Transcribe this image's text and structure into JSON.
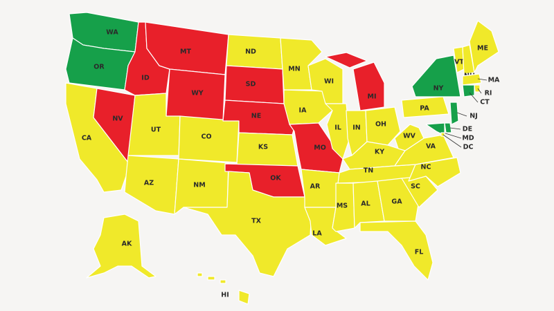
{
  "states": [
    {
      "label": "WA",
      "color": "#16a04a"
    },
    {
      "label": "OR",
      "color": "#16a04a"
    },
    {
      "label": "CA",
      "color": "#f0e92a"
    },
    {
      "label": "NV",
      "color": "#e8202a"
    },
    {
      "label": "ID",
      "color": "#e8202a"
    },
    {
      "label": "MT",
      "color": "#e8202a"
    },
    {
      "label": "WY",
      "color": "#e8202a"
    },
    {
      "label": "UT",
      "color": "#f0e92a"
    },
    {
      "label": "CO",
      "color": "#f0e92a"
    },
    {
      "label": "AZ",
      "color": "#f0e92a"
    },
    {
      "label": "NM",
      "color": "#f0e92a"
    },
    {
      "label": "ND",
      "color": "#f0e92a"
    },
    {
      "label": "SD",
      "color": "#e8202a"
    },
    {
      "label": "NE",
      "color": "#e8202a"
    },
    {
      "label": "KS",
      "color": "#f0e92a"
    },
    {
      "label": "OK",
      "color": "#e8202a"
    },
    {
      "label": "TX",
      "color": "#f0e92a"
    },
    {
      "label": "MN",
      "color": "#f0e92a"
    },
    {
      "label": "IA",
      "color": "#f0e92a"
    },
    {
      "label": "MO",
      "color": "#e8202a"
    },
    {
      "label": "AR",
      "color": "#f0e92a"
    },
    {
      "label": "LA",
      "color": "#f0e92a"
    },
    {
      "label": "WI",
      "color": "#f0e92a"
    },
    {
      "label": "IL",
      "color": "#f0e92a"
    },
    {
      "label": "MI",
      "color": "#e8202a"
    },
    {
      "label": "IN",
      "color": "#f0e92a"
    },
    {
      "label": "OH",
      "color": "#f0e92a"
    },
    {
      "label": "KY",
      "color": "#f0e92a"
    },
    {
      "label": "TN",
      "color": "#f0e92a"
    },
    {
      "label": "MS",
      "color": "#f0e92a"
    },
    {
      "label": "AL",
      "color": "#f0e92a"
    },
    {
      "label": "GA",
      "color": "#f0e92a"
    },
    {
      "label": "FL",
      "color": "#f0e92a"
    },
    {
      "label": "SC",
      "color": "#f0e92a"
    },
    {
      "label": "NC",
      "color": "#f0e92a"
    },
    {
      "label": "VA",
      "color": "#f0e92a"
    },
    {
      "label": "WV",
      "color": "#f0e92a"
    },
    {
      "label": "PA",
      "color": "#f0e92a"
    },
    {
      "label": "NY",
      "color": "#16a04a"
    },
    {
      "label": "VT",
      "color": "#f0e92a"
    },
    {
      "label": "NH",
      "color": "#f0e92a"
    },
    {
      "label": "ME",
      "color": "#f0e92a"
    },
    {
      "label": "MA",
      "color": "#f0e92a"
    },
    {
      "label": "RI",
      "color": "#f0e92a"
    },
    {
      "label": "CT",
      "color": "#16a04a"
    },
    {
      "label": "NJ",
      "color": "#16a04a"
    },
    {
      "label": "DE",
      "color": "#16a04a"
    },
    {
      "label": "MD",
      "color": "#16a04a"
    },
    {
      "label": "DC",
      "color": "#f0e92a"
    },
    {
      "label": "AK",
      "color": "#f0e92a"
    },
    {
      "label": "HI",
      "color": "#f0e92a"
    }
  ]
}
